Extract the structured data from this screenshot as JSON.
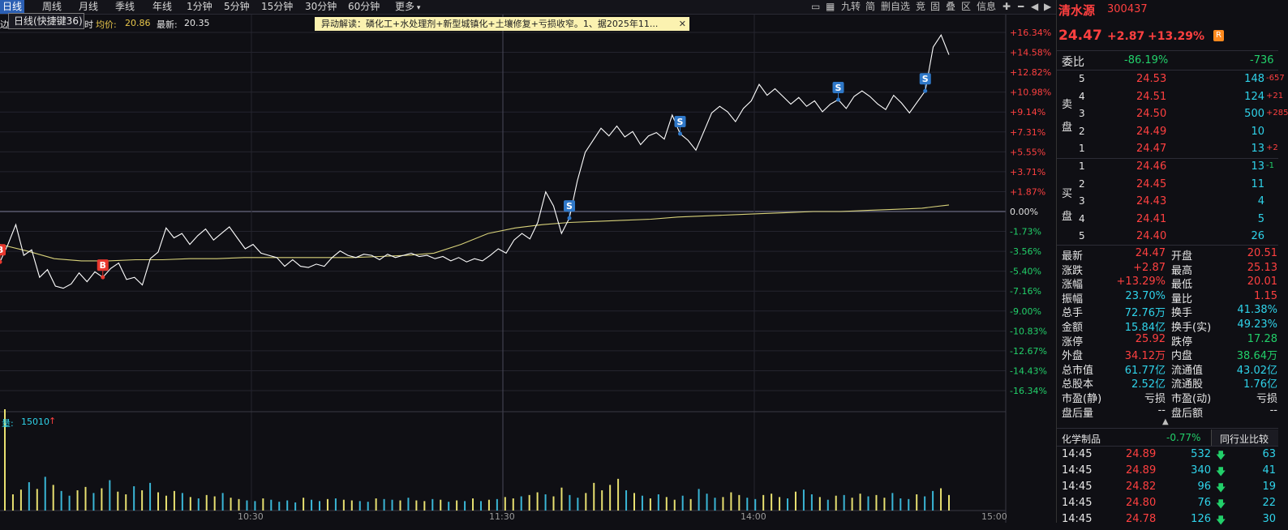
{
  "toolbar": {
    "periods": [
      "日线",
      "周线",
      "月线",
      "季线",
      "年线",
      "1分钟",
      "5分钟",
      "15分钟",
      "30分钟",
      "60分钟",
      "更多"
    ],
    "tools": [
      "九转",
      "简",
      "删自选",
      "竞",
      "固",
      "叠",
      "区",
      "信息"
    ]
  },
  "tooltip": "日线(快捷键36)",
  "chart_info": {
    "avg_label": "均价:",
    "avg_value": "20.86",
    "latest_label": "最新:",
    "latest_value": "20.35"
  },
  "alert": {
    "text": "异动解读：磷化工+水处理剂+新型城镇化+土壤修复+亏损收窄。1、据2025年11...",
    "close": "✕"
  },
  "volume_info": {
    "label": "量:",
    "value": "15010",
    "arrow": "↑"
  },
  "chart_data": {
    "type": "line",
    "pct_ticks": [
      "+16.34%",
      "+14.58%",
      "+12.82%",
      "+10.98%",
      "+9.14%",
      "+7.31%",
      "+5.55%",
      "+3.71%",
      "+1.87%",
      "0.00%",
      "-1.73%",
      "-3.56%",
      "-5.40%",
      "-7.16%",
      "-9.00%",
      "-10.83%",
      "-12.67%",
      "-14.43%",
      "-16.34%"
    ],
    "time_ticks": [
      "10:30",
      "11:30",
      "14:00",
      "15:00"
    ],
    "ylim": [
      -16.34,
      16.34
    ],
    "price_pct": [
      -4.6,
      -3.0,
      -1.2,
      -4.0,
      -3.5,
      -6.0,
      -5.3,
      -6.8,
      -7.0,
      -6.6,
      -5.6,
      -6.4,
      -5.5,
      -6.0,
      -5.2,
      -4.7,
      -6.2,
      -6.0,
      -6.7,
      -4.3,
      -3.7,
      -1.5,
      -2.4,
      -2.0,
      -3.0,
      -2.2,
      -1.6,
      -2.6,
      -2.0,
      -1.4,
      -2.4,
      -3.4,
      -3.0,
      -3.8,
      -4.0,
      -4.2,
      -5.0,
      -4.4,
      -5.0,
      -5.1,
      -4.8,
      -5.0,
      -4.2,
      -3.6,
      -4.0,
      -4.2,
      -3.9,
      -4.0,
      -4.4,
      -3.9,
      -4.2,
      -4.0,
      -3.8,
      -4.1,
      -4.0,
      -4.3,
      -4.1,
      -4.5,
      -4.2,
      -4.6,
      -4.3,
      -4.5,
      -4.0,
      -3.4,
      -3.8,
      -2.6,
      -2.0,
      -2.5,
      -1.0,
      1.8,
      0.5,
      -2.0,
      -0.6,
      2.8,
      5.4,
      6.5,
      7.6,
      6.9,
      7.8,
      6.8,
      7.3,
      6.1,
      6.9,
      7.2,
      6.6,
      8.8,
      7.1,
      6.5,
      5.6,
      7.3,
      9.0,
      9.6,
      9.1,
      8.2,
      9.4,
      10.1,
      11.6,
      10.6,
      11.2,
      10.5,
      9.8,
      10.4,
      9.6,
      10.1,
      9.1,
      9.8,
      10.2,
      9.4,
      10.5,
      11.0,
      10.5,
      9.8,
      9.3,
      10.6,
      9.9,
      9.0,
      10.0,
      11.0,
      15.0,
      16.1,
      14.3
    ],
    "avg_pct": [
      -3.0,
      -3.6,
      -4.3,
      -4.5,
      -4.5,
      -4.4,
      -4.4,
      -4.3,
      -4.3,
      -4.2,
      -4.2,
      -4.2,
      -4.2,
      -4.2,
      -4.1,
      -4.0,
      -3.8,
      -3.0,
      -2.0,
      -1.5,
      -1.2,
      -1.0,
      -0.9,
      -0.8,
      -0.7,
      -0.5,
      -0.4,
      -0.3,
      -0.2,
      -0.1,
      0.0,
      0.0,
      0.1,
      0.2,
      0.3,
      0.6
    ],
    "buy_marks": [
      {
        "label": "B",
        "idx": 0
      },
      {
        "label": "B",
        "idx": 13
      }
    ],
    "sell_marks": [
      {
        "label": "S",
        "idx": 72
      },
      {
        "label": "S",
        "idx": 86
      },
      {
        "label": "S",
        "idx": 106
      },
      {
        "label": "S",
        "idx": 117
      }
    ],
    "volume": [
      15010,
      2400,
      3100,
      4200,
      3200,
      5000,
      3800,
      2900,
      2200,
      3000,
      3500,
      2600,
      3300,
      4500,
      2800,
      2400,
      3600,
      3000,
      4100,
      2700,
      2200,
      2900,
      2600,
      2000,
      1800,
      2300,
      2100,
      2600,
      1900,
      1700,
      1500,
      1400,
      1800,
      1600,
      1300,
      1500,
      1200,
      1900,
      1600,
      1400,
      1700,
      1800,
      1600,
      1500,
      1400,
      1300,
      1800,
      1700,
      1600,
      1500,
      1900,
      1500,
      1400,
      1700,
      1600,
      1300,
      1500,
      1400,
      1800,
      1400,
      1600,
      1700,
      2000,
      1800,
      2100,
      2300,
      2700,
      2400,
      2100,
      3400,
      2300,
      1900,
      2600,
      4100,
      3000,
      3800,
      4700,
      3000,
      2600,
      2200,
      1800,
      2400,
      2000,
      1600,
      2200,
      1700,
      3200,
      2500,
      1900,
      2000,
      2700,
      2300,
      1900,
      1700,
      2300,
      2500,
      2000,
      1800,
      2800,
      3100,
      2400,
      2000,
      1600,
      2200,
      2300,
      1900,
      2500,
      2100,
      2300,
      1900,
      2600,
      1800,
      1700,
      2400,
      2100,
      2900,
      3300,
      2300
    ]
  },
  "stock": {
    "name": "清水源",
    "code": "300437",
    "price": "24.47",
    "change": "+2.87",
    "pct": "+13.29%",
    "r_badge": "R"
  },
  "weibi": {
    "label": "委比",
    "pct": "-86.19%",
    "diff": "-736"
  },
  "sell_orders": [
    {
      "level": "5",
      "price": "24.53",
      "vol": "148",
      "chg": "-657"
    },
    {
      "level": "4",
      "price": "24.51",
      "vol": "124",
      "chg": "+21"
    },
    {
      "level": "3",
      "price": "24.50",
      "vol": "500",
      "chg": "+285"
    },
    {
      "level": "2",
      "price": "24.49",
      "vol": "10",
      "chg": ""
    },
    {
      "level": "1",
      "price": "24.47",
      "vol": "13",
      "chg": "+2"
    }
  ],
  "buy_orders": [
    {
      "level": "1",
      "price": "24.46",
      "vol": "13",
      "chg": "-1"
    },
    {
      "level": "2",
      "price": "24.45",
      "vol": "11",
      "chg": ""
    },
    {
      "level": "3",
      "price": "24.43",
      "vol": "4",
      "chg": ""
    },
    {
      "level": "4",
      "price": "24.41",
      "vol": "5",
      "chg": ""
    },
    {
      "level": "5",
      "price": "24.40",
      "vol": "26",
      "chg": ""
    }
  ],
  "sell_side_label": [
    "卖",
    "盘"
  ],
  "buy_side_label": [
    "买",
    "盘"
  ],
  "stats": [
    {
      "l1": "最新",
      "v1": "24.47",
      "c1": "red",
      "l2": "开盘",
      "v2": "20.51",
      "c2": "red"
    },
    {
      "l1": "涨跌",
      "v1": "+2.87",
      "c1": "red",
      "l2": "最高",
      "v2": "25.13",
      "c2": "red"
    },
    {
      "l1": "涨幅",
      "v1": "+13.29%",
      "c1": "red",
      "l2": "最低",
      "v2": "20.01",
      "c2": "red"
    },
    {
      "l1": "振幅",
      "v1": "23.70%",
      "c1": "cyan",
      "l2": "量比",
      "v2": "1.15",
      "c2": "red"
    },
    {
      "l1": "总手",
      "v1": "72.76万",
      "c1": "cyan",
      "l2": "换手",
      "v2": "41.38%",
      "c2": "cyan"
    },
    {
      "l1": "金额",
      "v1": "15.84亿",
      "c1": "cyan",
      "l2": "换手(实)",
      "v2": "49.23%",
      "c2": "cyan"
    },
    {
      "l1": "涨停",
      "v1": "25.92",
      "c1": "red",
      "l2": "跌停",
      "v2": "17.28",
      "c2": "green"
    },
    {
      "l1": "外盘",
      "v1": "34.12万",
      "c1": "red",
      "l2": "内盘",
      "v2": "38.64万",
      "c2": "green"
    },
    {
      "l1": "总市值",
      "v1": "61.77亿",
      "c1": "cyan",
      "l2": "流通值",
      "v2": "43.02亿",
      "c2": "cyan"
    },
    {
      "l1": "总股本",
      "v1": "2.52亿",
      "c1": "cyan",
      "l2": "流通股",
      "v2": "1.76亿",
      "c2": "cyan"
    },
    {
      "l1": "市盈(静)",
      "v1": "亏损",
      "c1": "white",
      "l2": "市盈(动)",
      "v2": "亏损",
      "c2": "white"
    },
    {
      "l1": "盘后量",
      "v1": "--",
      "c1": "white",
      "l2": "盘后额",
      "v2": "--",
      "c2": "white"
    }
  ],
  "sector": {
    "name": "化学制品",
    "pct": "-0.77%",
    "compare": "同行业比较"
  },
  "trades": [
    {
      "time": "14:45",
      "price": "24.89",
      "vol": "532",
      "arrow": "🡇",
      "n": "63"
    },
    {
      "time": "14:45",
      "price": "24.89",
      "vol": "340",
      "arrow": "🡇",
      "n": "41"
    },
    {
      "time": "14:45",
      "price": "24.82",
      "vol": "96",
      "arrow": "🡇",
      "n": "19"
    },
    {
      "time": "14:45",
      "price": "24.80",
      "vol": "76",
      "arrow": "🡇",
      "n": "22"
    },
    {
      "time": "14:45",
      "price": "24.78",
      "vol": "126",
      "arrow": "🡇",
      "n": "30"
    }
  ]
}
